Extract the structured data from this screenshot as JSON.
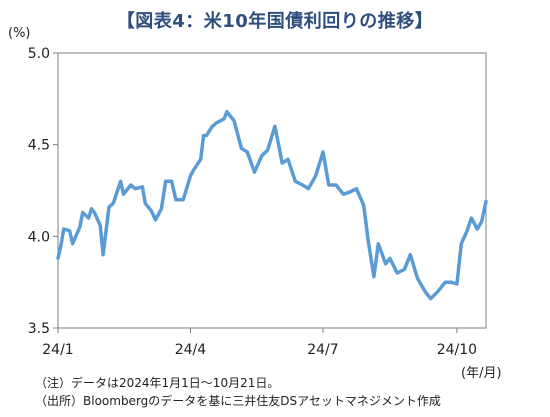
{
  "title": "【図表4：米10年国債利回りの推移】",
  "unit_label": "(%)",
  "x_unit_label": "(年/月)",
  "notes": [
    "（注）データは2024年1月1日～10月21日。",
    "（出所）Bloombergのデータを基に三井住友DSアセットマネジメント作成"
  ],
  "line_color": "#5B9BD5",
  "chart_data": {
    "type": "line",
    "title": "【図表4：米10年国債利回りの推移】",
    "xlabel": "(年/月)",
    "ylabel": "(%)",
    "ylim": [
      3.5,
      5.0
    ],
    "yticks": [
      "3.5",
      "4.0",
      "4.5",
      "5.0"
    ],
    "xticks": [
      {
        "label": "24/1",
        "date": "2024-01-01"
      },
      {
        "label": "24/4",
        "date": "2024-04-01"
      },
      {
        "label": "24/7",
        "date": "2024-07-01"
      },
      {
        "label": "24/10",
        "date": "2024-10-01"
      }
    ],
    "xlim": [
      "2024-01-01",
      "2024-10-21"
    ],
    "grid": false,
    "series": [
      {
        "x": [
          "2024-01-01",
          "2024-01-03",
          "2024-01-05",
          "2024-01-09",
          "2024-01-11",
          "2024-01-16",
          "2024-01-18",
          "2024-01-22",
          "2024-01-24",
          "2024-01-26",
          "2024-01-30",
          "2024-02-01",
          "2024-02-05",
          "2024-02-08",
          "2024-02-13",
          "2024-02-15",
          "2024-02-20",
          "2024-02-23",
          "2024-02-28",
          "2024-03-01",
          "2024-03-05",
          "2024-03-08",
          "2024-03-12",
          "2024-03-15",
          "2024-03-19",
          "2024-03-22",
          "2024-03-27",
          "2024-04-01",
          "2024-04-03",
          "2024-04-08",
          "2024-04-10",
          "2024-04-12",
          "2024-04-16",
          "2024-04-19",
          "2024-04-24",
          "2024-04-26",
          "2024-05-01",
          "2024-05-06",
          "2024-05-10",
          "2024-05-15",
          "2024-05-20",
          "2024-05-24",
          "2024-05-29",
          "2024-06-03",
          "2024-06-07",
          "2024-06-12",
          "2024-06-17",
          "2024-06-21",
          "2024-06-26",
          "2024-07-01",
          "2024-07-05",
          "2024-07-10",
          "2024-07-15",
          "2024-07-19",
          "2024-07-24",
          "2024-07-29",
          "2024-08-01",
          "2024-08-05",
          "2024-08-08",
          "2024-08-13",
          "2024-08-16",
          "2024-08-21",
          "2024-08-26",
          "2024-08-30",
          "2024-09-04",
          "2024-09-09",
          "2024-09-13",
          "2024-09-18",
          "2024-09-23",
          "2024-09-27",
          "2024-10-01",
          "2024-10-04",
          "2024-10-08",
          "2024-10-11",
          "2024-10-15",
          "2024-10-18",
          "2024-10-21"
        ],
        "y": [
          3.88,
          3.95,
          4.04,
          4.03,
          3.96,
          4.05,
          4.13,
          4.1,
          4.15,
          4.13,
          4.06,
          3.9,
          4.16,
          4.18,
          4.3,
          4.23,
          4.28,
          4.26,
          4.27,
          4.18,
          4.14,
          4.09,
          4.15,
          4.3,
          4.3,
          4.2,
          4.2,
          4.33,
          4.36,
          4.42,
          4.55,
          4.55,
          4.6,
          4.62,
          4.64,
          4.68,
          4.63,
          4.48,
          4.46,
          4.35,
          4.44,
          4.47,
          4.6,
          4.4,
          4.42,
          4.3,
          4.28,
          4.26,
          4.33,
          4.46,
          4.28,
          4.28,
          4.23,
          4.24,
          4.26,
          4.17,
          3.98,
          3.78,
          3.96,
          3.85,
          3.88,
          3.8,
          3.82,
          3.9,
          3.77,
          3.7,
          3.66,
          3.7,
          3.75,
          3.75,
          3.74,
          3.96,
          4.03,
          4.1,
          4.04,
          4.08,
          4.19
        ]
      }
    ]
  }
}
